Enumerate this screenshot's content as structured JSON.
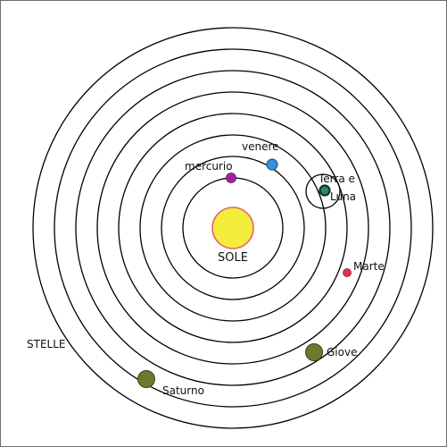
{
  "diagram": {
    "labels": {
      "sole": "SOLE",
      "mercurio": "mercurio",
      "venere": "venere",
      "terra_line1": "Terra e",
      "terra_line2": "Luna",
      "marte": "Marte",
      "giove": "Giove",
      "saturno": "Saturno",
      "stelle": "STELLE"
    },
    "colors": {
      "orbit": "#000000",
      "sun_fill": "#f2ec3a",
      "sun_stroke": "#e0606c",
      "mercurio": "#a020a0",
      "venere": "#3a8fd8",
      "terra": "#2a8a6a",
      "marte": "#e0304a",
      "giove": "#6b7a2c",
      "saturno": "#6b7a2c"
    }
  }
}
